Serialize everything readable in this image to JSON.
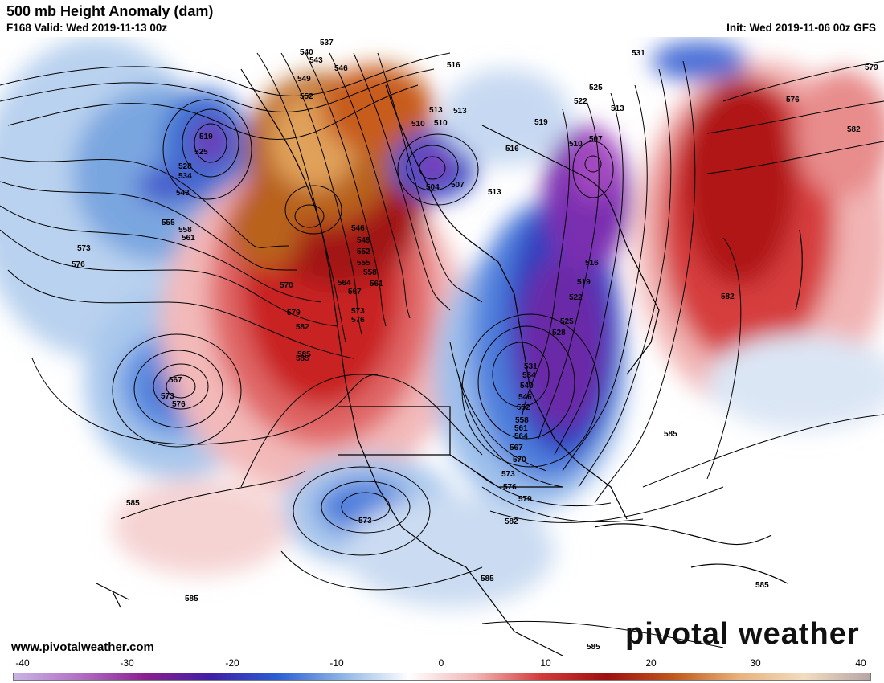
{
  "header": {
    "title": "500 mb Height Anomaly (dam)",
    "valid": "F168 Valid: Wed 2019-11-13 00z",
    "init": "Init: Wed 2019-11-06 00z GFS"
  },
  "footer": {
    "website": "www.pivotalweather.com",
    "brand": "pivotal weather"
  },
  "colorbar": {
    "labels": [
      "-40",
      "-30",
      "-20",
      "-10",
      "0",
      "10",
      "20",
      "30",
      "40"
    ],
    "colors": [
      "#c9b3e6",
      "#b26fc4",
      "#8a1f8f",
      "#3e1fa6",
      "#2a5ed4",
      "#8fb6e6",
      "#ffffff",
      "#f2b6b6",
      "#d43a3a",
      "#9e0f0f",
      "#c0571a",
      "#e7b27c",
      "#f2dcc0",
      "#b7a5a5"
    ]
  },
  "map": {
    "contour_labels": [
      "537",
      "540",
      "543",
      "546",
      "549",
      "552",
      "516",
      "513",
      "510",
      "519",
      "525",
      "528",
      "534",
      "543",
      "555",
      "558",
      "561",
      "573",
      "576",
      "546",
      "549",
      "552",
      "555",
      "558",
      "561",
      "564",
      "567",
      "570",
      "573",
      "576",
      "579",
      "582",
      "585",
      "516",
      "513",
      "504",
      "507",
      "510",
      "513",
      "531",
      "525",
      "522",
      "513",
      "507",
      "510",
      "519",
      "516",
      "519",
      "522",
      "525",
      "528",
      "531",
      "534",
      "540",
      "546",
      "552",
      "558",
      "561",
      "564",
      "567",
      "570",
      "573",
      "576",
      "579",
      "582",
      "585",
      "582",
      "579",
      "576",
      "582",
      "567",
      "573",
      "576",
      "585",
      "573",
      "585",
      "585",
      "585",
      "585",
      "585"
    ]
  }
}
